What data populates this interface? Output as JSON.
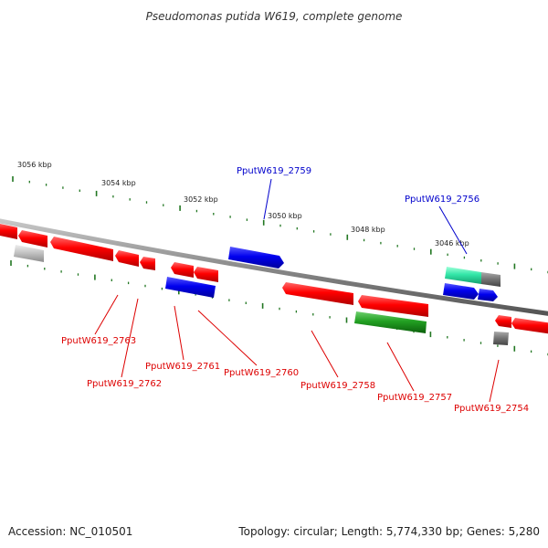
{
  "title": "Pseudomonas putida W619, complete genome",
  "footer": {
    "accession": "Accession: NC_010501",
    "summary": "Topology: circular; Length: 5,774,330 bp; Genes: 5,280"
  },
  "colors": {
    "forward_label": "#0000cc",
    "reverse_label": "#dd0000",
    "backbone": "#888888",
    "tick": "#227722"
  },
  "kbp_markers": [
    "3056 kbp",
    "3054 kbp",
    "3052 kbp",
    "3050 kbp",
    "3048 kbp",
    "3046 kbp"
  ],
  "labels": [
    {
      "text": "PputW619_2759",
      "strand": "forward"
    },
    {
      "text": "PputW619_2756",
      "strand": "forward"
    },
    {
      "text": "PputW619_2763",
      "strand": "reverse"
    },
    {
      "text": "PputW619_2762",
      "strand": "reverse"
    },
    {
      "text": "PputW619_2761",
      "strand": "reverse"
    },
    {
      "text": "PputW619_2760",
      "strand": "reverse"
    },
    {
      "text": "PputW619_2758",
      "strand": "reverse"
    },
    {
      "text": "PputW619_2757",
      "strand": "reverse"
    },
    {
      "text": "PputW619_2754",
      "strand": "reverse"
    }
  ]
}
